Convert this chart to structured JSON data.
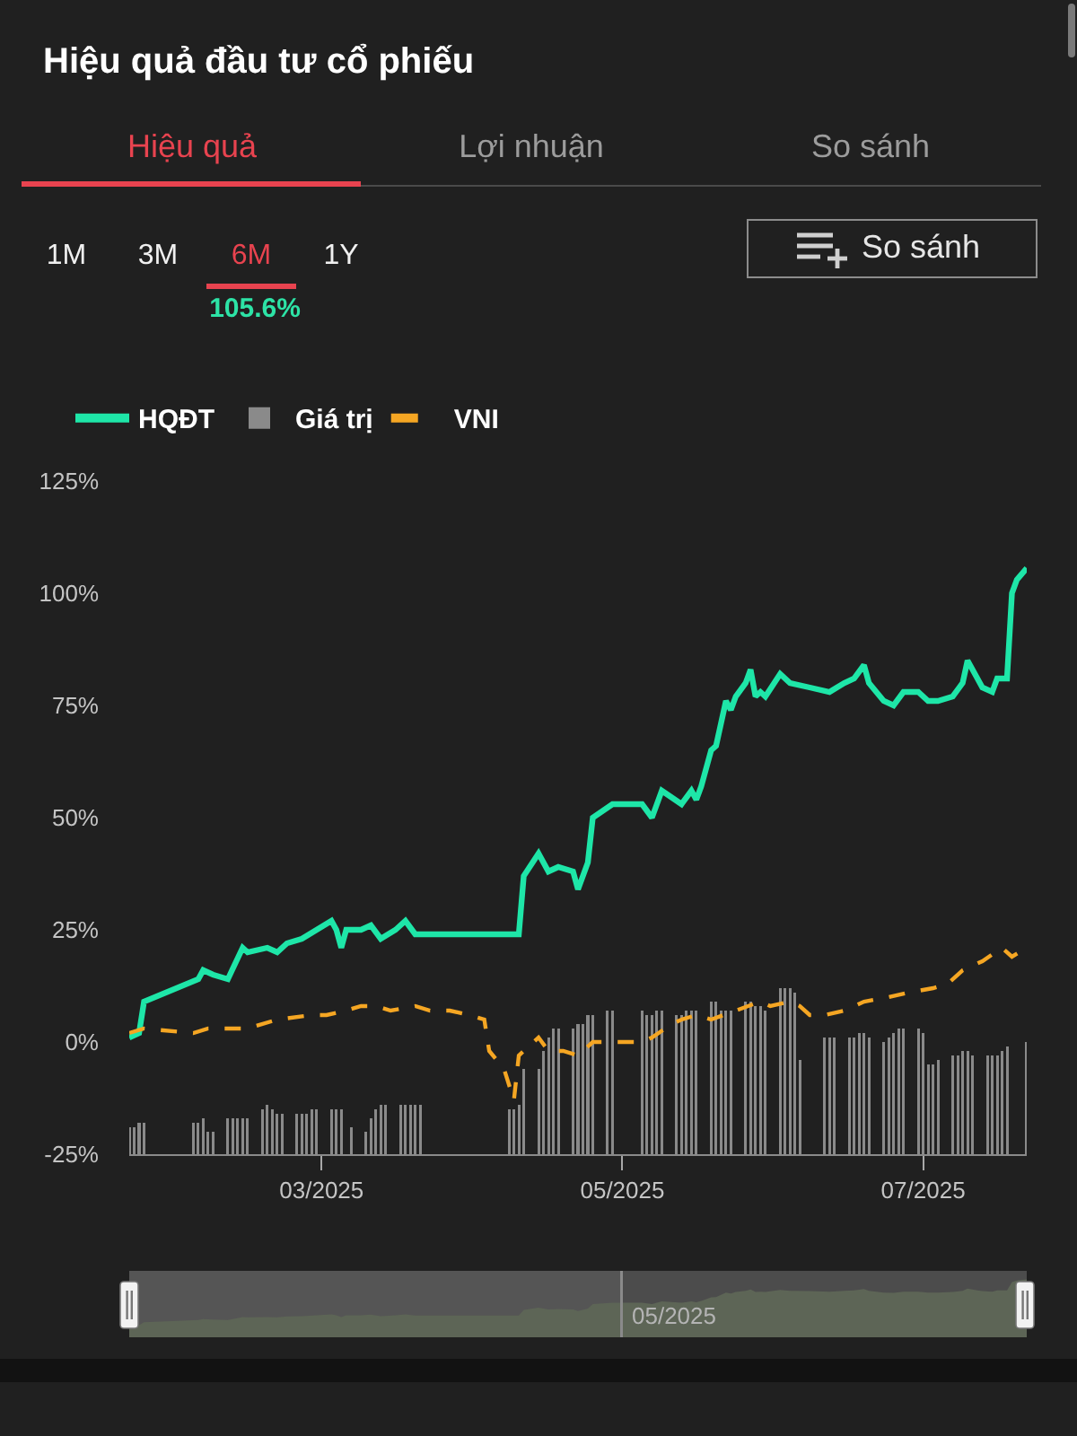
{
  "chart_data": {
    "type": "line",
    "title": "Hiệu quả đầu tư cổ phiếu",
    "annotations": [
      "Hiệu quả",
      "Lợi nhuận",
      "So sánh",
      "1M",
      "3M",
      "6M",
      "1Y",
      "105.6%",
      "So sánh",
      "05/2025"
    ],
    "xlim": [
      "2025-01-21",
      "2025-07-22"
    ],
    "xticks": [
      {
        "value": "2025-03-01",
        "label": "03/2025"
      },
      {
        "value": "2025-05-01",
        "label": "05/2025"
      },
      {
        "value": "2025-07-01",
        "label": "07/2025"
      }
    ],
    "ylim": [
      -25,
      125
    ],
    "yticks": [
      {
        "value": -25,
        "label": "-25%"
      },
      {
        "value": 0,
        "label": "0%"
      },
      {
        "value": 25,
        "label": "25%"
      },
      {
        "value": 50,
        "label": "50%"
      },
      {
        "value": 75,
        "label": "75%"
      },
      {
        "value": 100,
        "label": "100%"
      },
      {
        "value": 125,
        "label": "125%"
      }
    ],
    "grid": false,
    "legend": "top left",
    "series": [
      {
        "name": "HQĐT",
        "color": "#1ee6a8",
        "line_style": "solid",
        "x": [
          "2025-01-21",
          "2025-01-23",
          "2025-01-24",
          "2025-02-04",
          "2025-02-05",
          "2025-02-07",
          "2025-02-10",
          "2025-02-13",
          "2025-02-14",
          "2025-02-18",
          "2025-02-20",
          "2025-02-22",
          "2025-02-25",
          "2025-02-28",
          "2025-03-03",
          "2025-03-04",
          "2025-03-05",
          "2025-03-06",
          "2025-03-09",
          "2025-03-11",
          "2025-03-13",
          "2025-03-16",
          "2025-03-18",
          "2025-03-20",
          "2025-04-10",
          "2025-04-11",
          "2025-04-14",
          "2025-04-16",
          "2025-04-18",
          "2025-04-21",
          "2025-04-22",
          "2025-04-24",
          "2025-04-25",
          "2025-04-29",
          "2025-05-05",
          "2025-05-07",
          "2025-05-09",
          "2025-05-13",
          "2025-05-15",
          "2025-05-16",
          "2025-05-17",
          "2025-05-19",
          "2025-05-20",
          "2025-05-22",
          "2025-05-23",
          "2025-05-24",
          "2025-05-26",
          "2025-05-27",
          "2025-05-28",
          "2025-05-29",
          "2025-05-30",
          "2025-06-02",
          "2025-06-04",
          "2025-06-08",
          "2025-06-12",
          "2025-06-15",
          "2025-06-17",
          "2025-06-19",
          "2025-06-20",
          "2025-06-23",
          "2025-06-25",
          "2025-06-27",
          "2025-06-30",
          "2025-07-02",
          "2025-07-04",
          "2025-07-07",
          "2025-07-09",
          "2025-07-10",
          "2025-07-12",
          "2025-07-13",
          "2025-07-15",
          "2025-07-16",
          "2025-07-18",
          "2025-07-19",
          "2025-07-20",
          "2025-07-22"
        ],
        "values": [
          1,
          2,
          9,
          14,
          16,
          15,
          14,
          21,
          20,
          21,
          20,
          22,
          23,
          25,
          27,
          25,
          21,
          25,
          25,
          26,
          23,
          25,
          27,
          24,
          24,
          37,
          42,
          38,
          39,
          38,
          34,
          40,
          50,
          53,
          53,
          50,
          56,
          53,
          56,
          54,
          57,
          65,
          66,
          76,
          74,
          77,
          80,
          83,
          77,
          78,
          77,
          82,
          80,
          79,
          78,
          80,
          81,
          84,
          80,
          76,
          75,
          78,
          78,
          76,
          76,
          77,
          80,
          85,
          81,
          79,
          78,
          81,
          81,
          100,
          103,
          105.6
        ]
      },
      {
        "name": "Giá trị",
        "type": "bar",
        "color": "#8a8a8a",
        "x": [
          "2025-01-21",
          "2025-01-22",
          "2025-01-23",
          "2025-01-24",
          "2025-02-03",
          "2025-02-04",
          "2025-02-05",
          "2025-02-06",
          "2025-02-07",
          "2025-02-10",
          "2025-02-11",
          "2025-02-12",
          "2025-02-13",
          "2025-02-14",
          "2025-02-17",
          "2025-02-18",
          "2025-02-19",
          "2025-02-20",
          "2025-02-21",
          "2025-02-24",
          "2025-02-25",
          "2025-02-26",
          "2025-02-27",
          "2025-02-28",
          "2025-03-03",
          "2025-03-04",
          "2025-03-05",
          "2025-03-07",
          "2025-03-10",
          "2025-03-11",
          "2025-03-12",
          "2025-03-13",
          "2025-03-14",
          "2025-03-17",
          "2025-03-18",
          "2025-03-19",
          "2025-03-20",
          "2025-03-21",
          "2025-04-08",
          "2025-04-09",
          "2025-04-10",
          "2025-04-11",
          "2025-04-14",
          "2025-04-15",
          "2025-04-16",
          "2025-04-17",
          "2025-04-18",
          "2025-04-21",
          "2025-04-22",
          "2025-04-23",
          "2025-04-24",
          "2025-04-25",
          "2025-04-28",
          "2025-04-29",
          "2025-05-05",
          "2025-05-06",
          "2025-05-07",
          "2025-05-08",
          "2025-05-09",
          "2025-05-12",
          "2025-05-13",
          "2025-05-14",
          "2025-05-15",
          "2025-05-16",
          "2025-05-19",
          "2025-05-20",
          "2025-05-21",
          "2025-05-22",
          "2025-05-23",
          "2025-05-26",
          "2025-05-27",
          "2025-05-28",
          "2025-05-29",
          "2025-05-30",
          "2025-06-02",
          "2025-06-03",
          "2025-06-04",
          "2025-06-05",
          "2025-06-06",
          "2025-06-11",
          "2025-06-12",
          "2025-06-13",
          "2025-06-16",
          "2025-06-17",
          "2025-06-18",
          "2025-06-19",
          "2025-06-20",
          "2025-06-23",
          "2025-06-24",
          "2025-06-25",
          "2025-06-26",
          "2025-06-27",
          "2025-06-30",
          "2025-07-01",
          "2025-07-02",
          "2025-07-03",
          "2025-07-04",
          "2025-07-07",
          "2025-07-08",
          "2025-07-09",
          "2025-07-10",
          "2025-07-11",
          "2025-07-14",
          "2025-07-15",
          "2025-07-16",
          "2025-07-17",
          "2025-07-18",
          "2025-07-22"
        ],
        "values": [
          6,
          6,
          7,
          7,
          7,
          7,
          8,
          5,
          5,
          8,
          8,
          8,
          8,
          8,
          10,
          11,
          10,
          9,
          9,
          9,
          9,
          9,
          10,
          10,
          10,
          10,
          10,
          6,
          5,
          8,
          10,
          11,
          11,
          11,
          11,
          11,
          11,
          11,
          10,
          10,
          11,
          19,
          19,
          23,
          26,
          28,
          28,
          28,
          29,
          29,
          31,
          31,
          32,
          32,
          32,
          31,
          31,
          32,
          32,
          31,
          31,
          32,
          32,
          32,
          34,
          34,
          32,
          32,
          32,
          34,
          34,
          33,
          33,
          32,
          37,
          37,
          37,
          36,
          21,
          26,
          26,
          26,
          26,
          26,
          27,
          27,
          26,
          25,
          26,
          27,
          28,
          28,
          28,
          27,
          20,
          20,
          21,
          22,
          22,
          23,
          23,
          22,
          22,
          22,
          22,
          23,
          24,
          25
        ],
        "base": [
          -25,
          -25,
          -25,
          -25,
          -25,
          -25,
          -25,
          -25,
          -25,
          -25,
          -25,
          -25,
          -25,
          -25,
          -25,
          -25,
          -25,
          -25,
          -25,
          -25,
          -25,
          -25,
          -25,
          -25,
          -25,
          -25,
          -25,
          -25,
          -25,
          -25,
          -25,
          -25,
          -25,
          -25,
          -25,
          -25,
          -25,
          -25,
          -25,
          -25,
          -25,
          -25,
          -25,
          -25,
          -25,
          -25,
          -25,
          -25,
          -25,
          -25,
          -25,
          -25,
          -25,
          -25,
          -25,
          -25,
          -25,
          -25,
          -25,
          -25,
          -25,
          -25,
          -25,
          -25,
          -25,
          -25,
          -25,
          -25,
          -25,
          -25,
          -25,
          -25,
          -25,
          -25,
          -25,
          -25,
          -25,
          -25,
          -25,
          -25,
          -25,
          -25,
          -25,
          -25,
          -25,
          -25,
          -25,
          -25,
          -25,
          -25,
          -25,
          -25,
          -25,
          -25,
          -25,
          -25,
          -25,
          -25,
          -25,
          -25,
          -25,
          -25,
          -25,
          -25,
          -25,
          -25,
          -25,
          -25
        ]
      },
      {
        "name": "VNI",
        "color": "#f5a623",
        "line_style": "dashed",
        "x": [
          "2025-01-21",
          "2025-01-24",
          "2025-02-03",
          "2025-02-06",
          "2025-02-09",
          "2025-02-14",
          "2025-02-20",
          "2025-02-27",
          "2025-03-02",
          "2025-03-06",
          "2025-03-09",
          "2025-03-12",
          "2025-03-15",
          "2025-03-20",
          "2025-03-23",
          "2025-03-27",
          "2025-03-31",
          "2025-04-03",
          "2025-04-04",
          "2025-04-07",
          "2025-04-09",
          "2025-04-10",
          "2025-04-14",
          "2025-04-16",
          "2025-04-19",
          "2025-04-22",
          "2025-04-25",
          "2025-04-30",
          "2025-05-05",
          "2025-05-07",
          "2025-05-11",
          "2025-05-13",
          "2025-05-16",
          "2025-05-19",
          "2025-05-24",
          "2025-05-29",
          "2025-05-31",
          "2025-06-04",
          "2025-06-06",
          "2025-06-08",
          "2025-06-11",
          "2025-06-15",
          "2025-06-19",
          "2025-06-24",
          "2025-06-28",
          "2025-07-03",
          "2025-07-06",
          "2025-07-09",
          "2025-07-13",
          "2025-07-17",
          "2025-07-19",
          "2025-07-22"
        ],
        "values": [
          2,
          3,
          2,
          3,
          3,
          3,
          5,
          6,
          6,
          7,
          8,
          8,
          7,
          8,
          7,
          7,
          6,
          5,
          -2,
          -6,
          -13,
          -3,
          1,
          -2,
          -2,
          -3,
          0,
          0,
          0,
          1,
          4,
          5,
          6,
          5,
          7,
          9,
          8,
          9,
          8,
          6,
          6,
          7,
          9,
          10,
          11,
          12,
          13,
          16,
          18,
          21,
          19,
          21
        ]
      }
    ]
  }
}
